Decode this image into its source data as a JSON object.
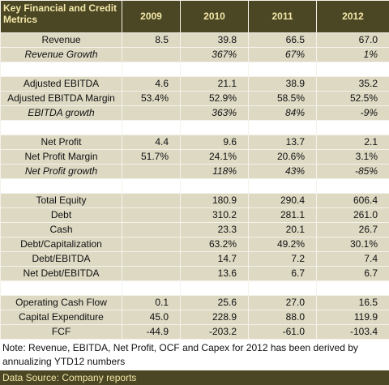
{
  "table": {
    "header": [
      "Key Financial and Credit Metrics",
      "2009",
      "2010",
      "2011",
      "2012"
    ],
    "groups": [
      {
        "rows": [
          {
            "label": "Revenue",
            "italic": false,
            "values": [
              "8.5",
              "39.8",
              "66.5",
              "67.0"
            ]
          },
          {
            "label": "Revenue Growth",
            "italic": true,
            "values": [
              null,
              "367%",
              "67%",
              "1%"
            ]
          }
        ]
      },
      {
        "rows": [
          {
            "label": "Adjusted EBITDA",
            "italic": false,
            "values": [
              "4.6",
              "21.1",
              "38.9",
              "35.2"
            ]
          },
          {
            "label": "Adjusted EBITDA Margin",
            "italic": false,
            "values": [
              "53.4%",
              "52.9%",
              "58.5%",
              "52.5%"
            ]
          },
          {
            "label": "EBITDA growth",
            "italic": true,
            "values": [
              null,
              "363%",
              "84%",
              "-9%"
            ]
          }
        ]
      },
      {
        "rows": [
          {
            "label": "Net Profit",
            "italic": false,
            "values": [
              "4.4",
              "9.6",
              "13.7",
              "2.1"
            ]
          },
          {
            "label": "Net Profit Margin",
            "italic": false,
            "values": [
              "51.7%",
              "24.1%",
              "20.6%",
              "3.1%"
            ]
          },
          {
            "label": "Net Profit growth",
            "italic": true,
            "values": [
              null,
              "118%",
              "43%",
              "-85%"
            ]
          }
        ]
      },
      {
        "rows": [
          {
            "label": "Total Equity",
            "italic": false,
            "values": [
              null,
              "180.9",
              "290.4",
              "606.4"
            ]
          },
          {
            "label": "Debt",
            "italic": false,
            "values": [
              null,
              "310.2",
              "281.1",
              "261.0"
            ]
          },
          {
            "label": "Cash",
            "italic": false,
            "values": [
              null,
              "23.3",
              "20.1",
              "26.7"
            ]
          },
          {
            "label": "Debt/Capitalization",
            "italic": false,
            "values": [
              null,
              "63.2%",
              "49.2%",
              "30.1%"
            ]
          },
          {
            "label": "Debt/EBITDA",
            "italic": false,
            "values": [
              null,
              "14.7",
              "7.2",
              "7.4"
            ]
          },
          {
            "label": "Net Debt/EBITDA",
            "italic": false,
            "values": [
              null,
              "13.6",
              "6.7",
              "6.7"
            ]
          }
        ]
      },
      {
        "rows": [
          {
            "label": "Operating Cash Flow",
            "italic": false,
            "values": [
              "0.1",
              "25.6",
              "27.0",
              "16.5"
            ]
          },
          {
            "label": "Capital Expenditure",
            "italic": false,
            "values": [
              "45.0",
              "228.9",
              "88.0",
              "119.9"
            ]
          },
          {
            "label": "FCF",
            "italic": false,
            "values": [
              "-44.9",
              "-203.2",
              "-61.0",
              "-103.4"
            ]
          }
        ]
      }
    ]
  },
  "note": "Note: Revenue, EBITDA, Net Profit, OCF and Capex for 2012 has been derived by annualizing YTD12 numbers",
  "source": "Data Source: Company reports"
}
